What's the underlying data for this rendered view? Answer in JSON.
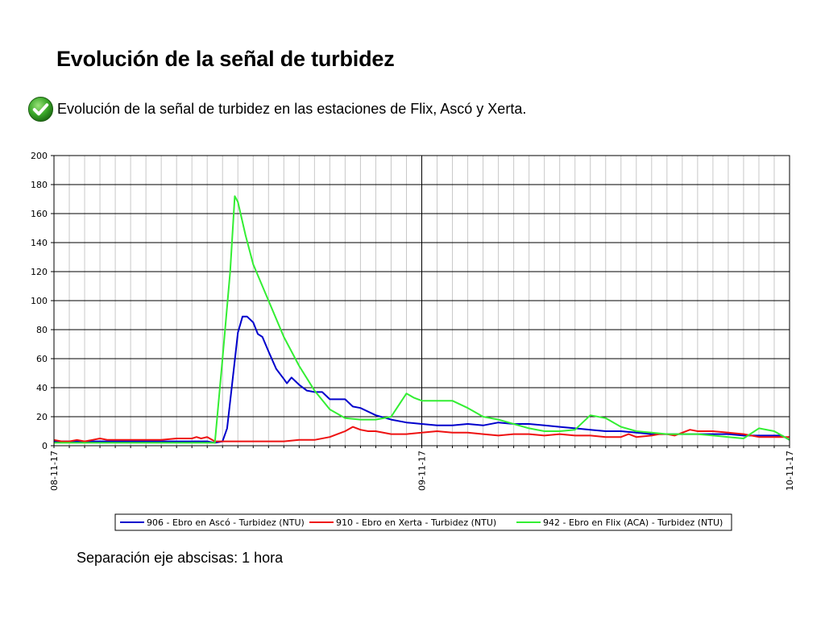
{
  "page": {
    "title": "Evolución de la señal de turbidez",
    "bullet_text": "Evolución de la señal de turbidez en las estaciones de Flix, Ascó y Xerta.",
    "bullet_icon": "check-icon",
    "footnote": "Separación eje abscisas: 1 hora"
  },
  "chart_data": {
    "type": "line",
    "title": "",
    "xlabel": "",
    "ylabel": "",
    "ylim": [
      0,
      200
    ],
    "yticks": [
      0,
      20,
      40,
      60,
      80,
      100,
      120,
      140,
      160,
      180,
      200
    ],
    "xlim": [
      0,
      48
    ],
    "x_unit": "hours from 08-11-17 00:00",
    "xtick_labels": [
      {
        "x": 0,
        "label": "08-11-17"
      },
      {
        "x": 24,
        "label": "09-11-17"
      },
      {
        "x": 48,
        "label": "10-11-17"
      }
    ],
    "grid": true,
    "legend_position": "bottom",
    "series": [
      {
        "name": "906 - Ebro en Ascó - Turbidez (NTU)",
        "color": "#0000cc",
        "points": [
          [
            0,
            3
          ],
          [
            5,
            3
          ],
          [
            10,
            3
          ],
          [
            10.5,
            2
          ],
          [
            11,
            3
          ],
          [
            11.3,
            12
          ],
          [
            11.6,
            40
          ],
          [
            12,
            78
          ],
          [
            12.3,
            89
          ],
          [
            12.6,
            89
          ],
          [
            13,
            85
          ],
          [
            13.3,
            77
          ],
          [
            13.6,
            75
          ],
          [
            14,
            65
          ],
          [
            14.5,
            53
          ],
          [
            15,
            46
          ],
          [
            15.2,
            43
          ],
          [
            15.5,
            47
          ],
          [
            16,
            42
          ],
          [
            16.5,
            38
          ],
          [
            17,
            37
          ],
          [
            17.5,
            37
          ],
          [
            18,
            32
          ],
          [
            19,
            32
          ],
          [
            19.5,
            27
          ],
          [
            20,
            26
          ],
          [
            21,
            21
          ],
          [
            22,
            18
          ],
          [
            23,
            16
          ],
          [
            24,
            15
          ],
          [
            25,
            14
          ],
          [
            26,
            14
          ],
          [
            27,
            15
          ],
          [
            28,
            14
          ],
          [
            29,
            16
          ],
          [
            30,
            15
          ],
          [
            31,
            15
          ],
          [
            32,
            14
          ],
          [
            33,
            13
          ],
          [
            34,
            12
          ],
          [
            35,
            11
          ],
          [
            36,
            10
          ],
          [
            37,
            10
          ],
          [
            38,
            9
          ],
          [
            39,
            8
          ],
          [
            40,
            8
          ],
          [
            41,
            8
          ],
          [
            42,
            8
          ],
          [
            43,
            8
          ],
          [
            44,
            8
          ],
          [
            45,
            7
          ],
          [
            46,
            7
          ],
          [
            47,
            7
          ],
          [
            47.5,
            7
          ],
          [
            48,
            4
          ]
        ]
      },
      {
        "name": "910 - Ebro en Xerta - Turbidez (NTU)",
        "color": "#ee1111",
        "points": [
          [
            0,
            4
          ],
          [
            0.5,
            3
          ],
          [
            1,
            3
          ],
          [
            1.5,
            4
          ],
          [
            2,
            3
          ],
          [
            2.5,
            4
          ],
          [
            3,
            5
          ],
          [
            3.5,
            4
          ],
          [
            4,
            4
          ],
          [
            5,
            4
          ],
          [
            6,
            4
          ],
          [
            7,
            4
          ],
          [
            8,
            5
          ],
          [
            9,
            5
          ],
          [
            9.3,
            6
          ],
          [
            9.6,
            5
          ],
          [
            10,
            6
          ],
          [
            10.5,
            3
          ],
          [
            11,
            3
          ],
          [
            12,
            3
          ],
          [
            13,
            3
          ],
          [
            14,
            3
          ],
          [
            15,
            3
          ],
          [
            16,
            4
          ],
          [
            17,
            4
          ],
          [
            18,
            6
          ],
          [
            18.5,
            8
          ],
          [
            19,
            10
          ],
          [
            19.5,
            13
          ],
          [
            20,
            11
          ],
          [
            20.5,
            10
          ],
          [
            21,
            10
          ],
          [
            22,
            8
          ],
          [
            23,
            8
          ],
          [
            24,
            9
          ],
          [
            25,
            10
          ],
          [
            26,
            9
          ],
          [
            27,
            9
          ],
          [
            28,
            8
          ],
          [
            29,
            7
          ],
          [
            30,
            8
          ],
          [
            31,
            8
          ],
          [
            32,
            7
          ],
          [
            33,
            8
          ],
          [
            34,
            7
          ],
          [
            35,
            7
          ],
          [
            36,
            6
          ],
          [
            37,
            6
          ],
          [
            37.5,
            8
          ],
          [
            38,
            6
          ],
          [
            39,
            7
          ],
          [
            39.5,
            8
          ],
          [
            40,
            8
          ],
          [
            40.5,
            7
          ],
          [
            41,
            9
          ],
          [
            41.5,
            11
          ],
          [
            42,
            10
          ],
          [
            43,
            10
          ],
          [
            44,
            9
          ],
          [
            45,
            8
          ],
          [
            46,
            6
          ],
          [
            47,
            6
          ],
          [
            48,
            6
          ]
        ]
      },
      {
        "name": "942 - Ebro en Flix (ACA) - Turbidez (NTU)",
        "color": "#33ee33",
        "points": [
          [
            0,
            2
          ],
          [
            10.5,
            2
          ],
          [
            11,
            60
          ],
          [
            11.5,
            120
          ],
          [
            11.8,
            172
          ],
          [
            12,
            168
          ],
          [
            12.5,
            145
          ],
          [
            13,
            125
          ],
          [
            14,
            100
          ],
          [
            15,
            75
          ],
          [
            16,
            55
          ],
          [
            17,
            38
          ],
          [
            18,
            25
          ],
          [
            19,
            19
          ],
          [
            20,
            18
          ],
          [
            21,
            18
          ],
          [
            22,
            20
          ],
          [
            23,
            36
          ],
          [
            23.5,
            33
          ],
          [
            24,
            31
          ],
          [
            25,
            31
          ],
          [
            26,
            31
          ],
          [
            27,
            26
          ],
          [
            28,
            20
          ],
          [
            29,
            18
          ],
          [
            30,
            15
          ],
          [
            31,
            12
          ],
          [
            32,
            10
          ],
          [
            33,
            10
          ],
          [
            34,
            11
          ],
          [
            35,
            21
          ],
          [
            36,
            19
          ],
          [
            37,
            13
          ],
          [
            38,
            10
          ],
          [
            39,
            9
          ],
          [
            40,
            8
          ],
          [
            41,
            8
          ],
          [
            42,
            8
          ],
          [
            43,
            7
          ],
          [
            44,
            6
          ],
          [
            45,
            5
          ],
          [
            46,
            12
          ],
          [
            47,
            10
          ],
          [
            48,
            4
          ]
        ]
      }
    ]
  }
}
